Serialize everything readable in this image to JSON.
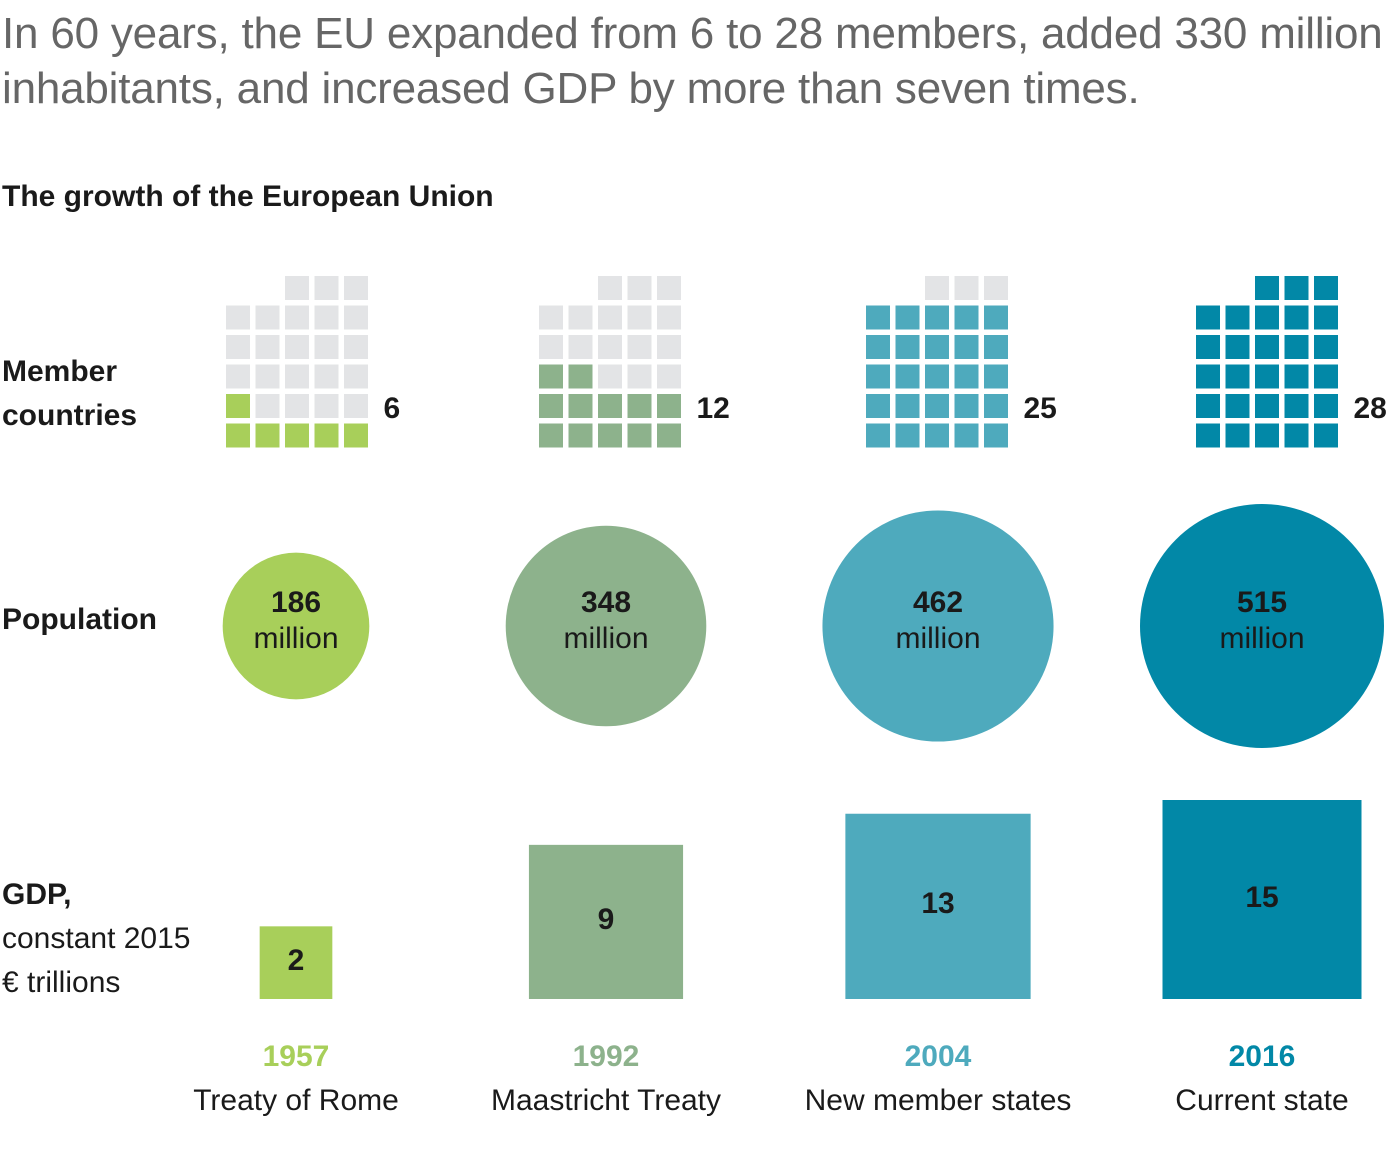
{
  "headline": "In 60 years, the EU expanded from 6 to 28 members, added 330 million inhabitants, and increased GDP by more than seven times.",
  "subtitle": "The growth of the European Union",
  "row_labels": {
    "members_line1": "Member",
    "members_line2": "countries",
    "population": "Population",
    "gdp_bold": "GDP,",
    "gdp_line2": "constant 2015",
    "gdp_line3": "€ trillions"
  },
  "colors": {
    "empty_cell": "#e3e4e6",
    "text": "#1a1a1a",
    "headline": "#666666"
  },
  "chart_data": {
    "type": "table",
    "title": "The growth of the European Union",
    "grid_capacity": 28,
    "periods": [
      {
        "year": "1957",
        "event": "Treaty of Rome",
        "members": 6,
        "members_label": "6",
        "population": 186,
        "population_label": "186",
        "population_unit": "million",
        "gdp": 2,
        "gdp_label": "2",
        "color": "#a8cf5a",
        "year_color": "#a8cf5a"
      },
      {
        "year": "1992",
        "event": "Maastricht Treaty",
        "members": 12,
        "members_label": "12",
        "population": 348,
        "population_label": "348",
        "population_unit": "million",
        "gdp": 9,
        "gdp_label": "9",
        "color": "#8db28c",
        "year_color": "#8db28c"
      },
      {
        "year": "2004",
        "event": "New member states",
        "members": 25,
        "members_label": "25",
        "population": 462,
        "population_label": "462",
        "population_unit": "million",
        "gdp": 13,
        "gdp_label": "13",
        "color": "#4eaabd",
        "year_color": "#4eaabd"
      },
      {
        "year": "2016",
        "event": "Current state",
        "members": 28,
        "members_label": "28",
        "population": 515,
        "population_label": "515",
        "population_unit": "million",
        "gdp": 15,
        "gdp_label": "15",
        "color": "#0288a7",
        "year_color": "#0288a7"
      }
    ]
  }
}
